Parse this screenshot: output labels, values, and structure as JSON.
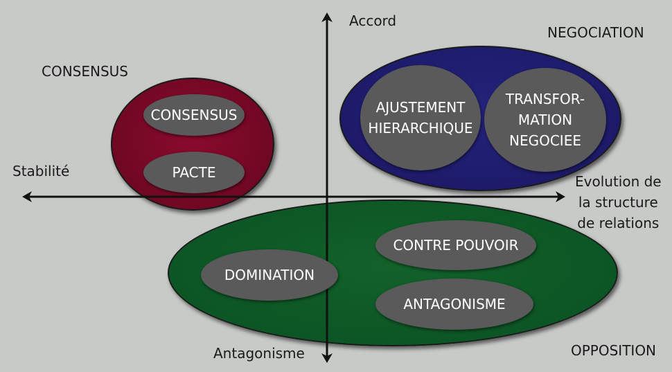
{
  "axes": {
    "top": "Accord",
    "bottom": "Antagonisme",
    "left": "Stabilité",
    "right": "Evolution de\nla structure\nde relations"
  },
  "quadrants": {
    "consensus": "CONSENSUS",
    "negociation": "NEGOCIATION",
    "opposition": "OPPOSITION"
  },
  "groups": {
    "consensus": {
      "items": [
        "CONSENSUS",
        "PACTE"
      ],
      "color": "#6e0822"
    },
    "negociation": {
      "items": [
        "AJUSTEMENT\nHIERARCHIQUE",
        "TRANSFOR-\nMATION\nNEGOCIEE"
      ],
      "color": "#1c1a68"
    },
    "opposition": {
      "items": [
        "DOMINATION",
        "CONTRE POUVOIR",
        "ANTAGONISME"
      ],
      "color": "#0c5424"
    }
  },
  "colors": {
    "background": "#c8cac8",
    "inner_ellipse": "#5a5a5a",
    "axis": "#111111"
  }
}
